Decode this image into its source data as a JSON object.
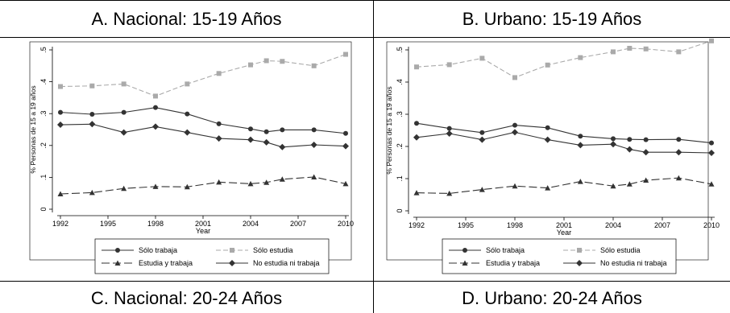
{
  "headers": {
    "a": "A.   Nacional: 15-19 Años",
    "b": "B.   Urbano: 15-19 Años",
    "c": "C.   Nacional: 20-24 Años",
    "d": "D.   Urbano: 20-24 Años"
  },
  "legend": {
    "solo_trabaja": "Sólo trabaja",
    "solo_estudia": "Sólo estudia",
    "estudia_y_trabaja": "Estudia y trabaja",
    "no_estudia_ni_trabaja": "No estudia ni trabaja"
  },
  "colors": {
    "dark": "#333333",
    "gray": "#aaaaaa"
  },
  "chart_data": [
    {
      "type": "line",
      "title": "A.   Nacional: 15-19 Años",
      "xlabel": "Year",
      "ylabel": "% Personas de 15 a 19 años",
      "xlim": [
        1992,
        2010
      ],
      "ylim": [
        0,
        0.5
      ],
      "xticks": [
        1992,
        1995,
        1998,
        2001,
        2004,
        2007,
        2010
      ],
      "yticks": [
        0,
        0.1,
        0.2,
        0.3,
        0.4,
        0.5
      ],
      "ytick_labels": [
        "0",
        ".1",
        ".2",
        ".3",
        ".4",
        ".5"
      ],
      "grid": false,
      "legend_position": "bottom",
      "x": [
        1992,
        1994,
        1996,
        1998,
        2000,
        2002,
        2004,
        2005,
        2006,
        2008,
        2010
      ],
      "series": [
        {
          "name": "Sólo trabaja",
          "marker": "circle",
          "dash": "solid",
          "color": "#333333",
          "values": [
            0.304,
            0.298,
            0.304,
            0.319,
            0.299,
            0.268,
            0.252,
            0.243,
            0.249,
            0.249,
            0.238
          ]
        },
        {
          "name": "Sólo estudia",
          "marker": "square",
          "dash": "dashed",
          "color": "#aaaaaa",
          "values": [
            0.385,
            0.387,
            0.393,
            0.355,
            0.393,
            0.426,
            0.453,
            0.466,
            0.464,
            0.45,
            0.486
          ]
        },
        {
          "name": "Estudia y trabaja",
          "marker": "triangle",
          "dash": "longdash",
          "color": "#333333",
          "values": [
            0.048,
            0.052,
            0.065,
            0.071,
            0.07,
            0.085,
            0.08,
            0.084,
            0.094,
            0.101,
            0.08
          ]
        },
        {
          "name": "No estudia ni trabaja",
          "marker": "diamond",
          "dash": "solid",
          "color": "#333333",
          "values": [
            0.265,
            0.267,
            0.241,
            0.259,
            0.241,
            0.222,
            0.218,
            0.21,
            0.195,
            0.202,
            0.198
          ]
        }
      ]
    },
    {
      "type": "line",
      "title": "B.   Urbano: 15-19 Años",
      "xlabel": "Year",
      "ylabel": "% Personas de 15 a 19 años",
      "xlim": [
        1992,
        2010
      ],
      "ylim": [
        0,
        0.5
      ],
      "xticks": [
        1992,
        1995,
        1998,
        2001,
        2004,
        2007,
        2010
      ],
      "yticks": [
        0,
        0.1,
        0.2,
        0.3,
        0.4,
        0.5
      ],
      "ytick_labels": [
        "0",
        ".1",
        ".2",
        ".3",
        ".4",
        ".5"
      ],
      "grid": false,
      "legend_position": "bottom",
      "x": [
        1992,
        1994,
        1996,
        1998,
        2000,
        2002,
        2004,
        2005,
        2006,
        2008,
        2010
      ],
      "series": [
        {
          "name": "Sólo trabaja",
          "marker": "circle",
          "dash": "solid",
          "color": "#333333",
          "values": [
            0.272,
            0.256,
            0.243,
            0.266,
            0.258,
            0.232,
            0.224,
            0.222,
            0.221,
            0.222,
            0.211
          ]
        },
        {
          "name": "Sólo estudia",
          "marker": "square",
          "dash": "dashed",
          "color": "#aaaaaa",
          "values": [
            0.447,
            0.454,
            0.474,
            0.414,
            0.453,
            0.476,
            0.494,
            0.505,
            0.503,
            0.494,
            0.528
          ]
        },
        {
          "name": "Estudia y trabaja",
          "marker": "triangle",
          "dash": "longdash",
          "color": "#333333",
          "values": [
            0.056,
            0.054,
            0.066,
            0.077,
            0.071,
            0.091,
            0.077,
            0.083,
            0.095,
            0.102,
            0.083
          ]
        },
        {
          "name": "No estudia ni trabaja",
          "marker": "diamond",
          "dash": "solid",
          "color": "#333333",
          "values": [
            0.228,
            0.24,
            0.221,
            0.244,
            0.221,
            0.204,
            0.207,
            0.191,
            0.182,
            0.182,
            0.18
          ]
        }
      ]
    }
  ]
}
